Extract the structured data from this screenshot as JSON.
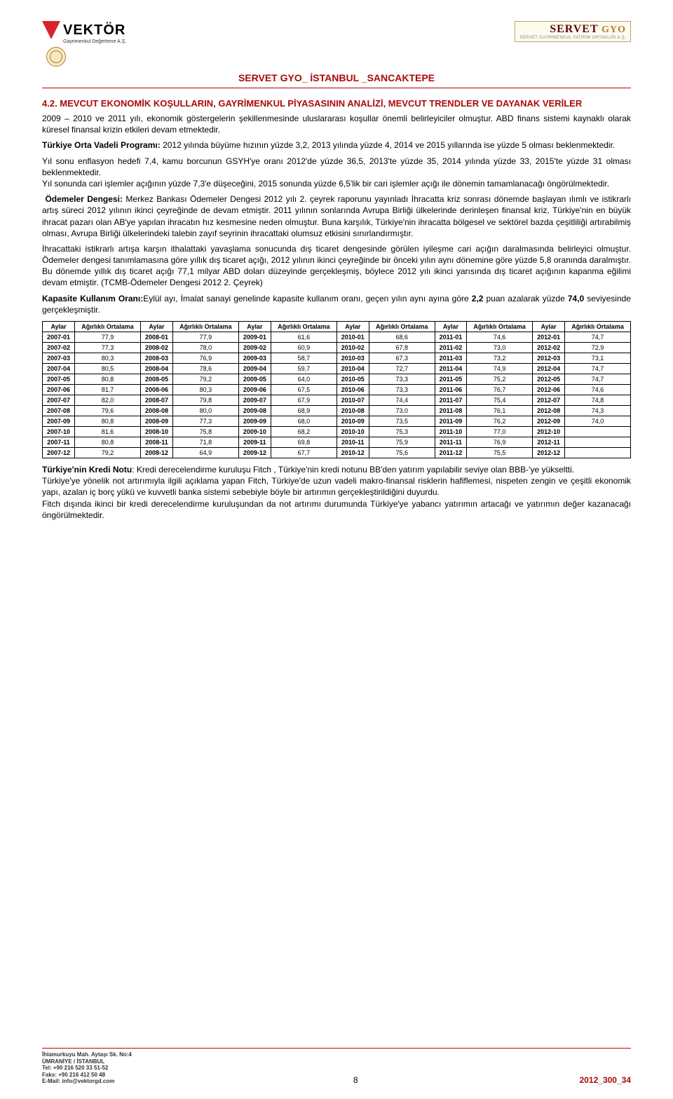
{
  "header": {
    "logo_left": {
      "brand": "VEKTÖR",
      "sub": "Gayrimenkul Değerleme A.Ş."
    },
    "logo_right": {
      "brand": "SERVET",
      "suffix": "GYO",
      "sub": "SERVET GAYRİMENKUL YATIRIM ORTAKLIĞI A.Ş."
    },
    "doc_title": "SERVET GYO_ İSTANBUL _SANCAKTEPE"
  },
  "section": {
    "heading": "4.2. MEVCUT EKONOMİK KOŞULLARIN, GAYRİMENKUL PİYASASININ ANALİZİ, MEVCUT TRENDLER VE DAYANAK VERİLER",
    "p1": "2009 – 2010 ve 2011 yılı, ekonomik göstergelerin şekillenmesinde uluslararası koşullar önemli belirleyiciler olmuştur. ABD finans sistemi kaynaklı olarak küresel finansal krizin etkileri devam etmektedir.",
    "p2_b": "Türkiye Orta Vadeli Programı:",
    "p2": " 2012 yılında büyüme hızının yüzde 3,2, 2013 yılında yüzde 4, 2014 ve 2015 yıllarında ise yüzde 5 olması beklenmektedir.",
    "p3a": "Yıl sonu enflasyon hedefi 7,4,  kamu borcunun GSYH'ye oranı 2012'de yüzde 36,5, 2013'te yüzde 35, 2014 yılında yüzde 33, 2015'te yüzde 31 olması beklenmektedir.",
    "p3b": "Yıl sonunda cari işlemler açığının yüzde 7,3'e düşeceğini,  2015 sonunda yüzde 6,5'lik bir cari işlemler açığı ile dönemin tamamlanacağı öngörülmektedir.",
    "p4_b": "Ödemeler Dengesi:",
    "p4": " Merkez Bankası Ödemeler Dengesi 2012 yılı 2. çeyrek raporunu yayınladı İhracatta kriz sonrası dönemde başlayan ılımlı ve istikrarlı artış süreci 2012 yılının ikinci çeyreğinde de devam etmiştir. 2011 yılının sonlarında Avrupa Birliği ülkelerinde derinleşen finansal kriz, Türkiye'nin en büyük ihracat pazarı olan AB'ye yapılan ihracatın hız kesmesine neden olmuştur. Buna karşılık, Türkiye'nin ihracatta bölgesel ve sektörel bazda çeşitliliği artırabilmiş olması, Avrupa Birliği ülkelerindeki talebin zayıf seyrinin ihracattaki olumsuz etkisini sınırlandırmıştır.",
    "p5": " İhracattaki istikrarlı artışa karşın ithalattaki yavaşlama sonucunda dış ticaret dengesinde görülen iyileşme cari açığın daralmasında belirleyici olmuştur. Ödemeler dengesi tanımlamasına göre yıllık dış ticaret açığı, 2012 yılının ikinci çeyreğinde bir önceki yılın aynı dönemine göre yüzde 5,8 oranında daralmıştır. Bu dönemde yıllık dış ticaret açığı 77,1 milyar ABD doları düzeyinde gerçekleşmiş, böylece 2012 yılı ikinci yarısında dış ticaret açığının kapanma eğilimi devam etmiştir. (TCMB-Ödemeler Dengesi 2012 2. Çeyrek)",
    "p6_b": "Kapasite Kullanım Oranı:",
    "p6a": "Eylül ayı, İmalat sanayi genelinde kapasite kullanım oranı, geçen yılın aynı ayına göre ",
    "p6b_b": "2,2",
    "p6c": " puan azalarak yüzde ",
    "p6d_b": "74,0",
    "p6e": " seviyesinde gerçekleşmiştir.",
    "p7_b": "Türkiye'nin Kredi Notu",
    "p7a": ": Kredi derecelendirme kuruluşu Fitch , Türkiye'nin kredi notunu BB'den yatırım yapılabilir seviye olan BBB-'ye yükseltti.",
    "p7b": "Türkiye'ye yönelik not artırımıyla ilgili açıklama yapan Fitch, Türkiye'de uzun vadeli makro-finansal risklerin hafiflemesi, nispeten zengin ve çeşitli ekonomik yapı, azalan iç borç yükü ve kuvvetli banka sistemi sebebiyle böyle bir artırımın gerçekleştirildiğini duyurdu.",
    "p7c": "Fitch dışında ikinci bir kredi derecelendirme kuruluşundan da not artırımı durumunda Türkiye'ye yabancı yatırımın artacağı ve yatırımın değer kazanacağı öngörülmektedir."
  },
  "table": {
    "col_month": "Aylar",
    "col_value": "Ağırlıklı Ortalama",
    "years": [
      "2007",
      "2008",
      "2009",
      "2010",
      "2011",
      "2012"
    ],
    "months": [
      "01",
      "02",
      "03",
      "04",
      "05",
      "06",
      "07",
      "08",
      "09",
      "10",
      "11",
      "12"
    ],
    "values": {
      "2007": [
        "77,9",
        "77,3",
        "80,3",
        "80,5",
        "80,8",
        "81,7",
        "82,0",
        "79,6",
        "80,8",
        "81,6",
        "80,8",
        "79,2"
      ],
      "2008": [
        "77,9",
        "78,0",
        "76,9",
        "78,6",
        "79,2",
        "80,3",
        "79,8",
        "80,0",
        "77,3",
        "75,8",
        "71,8",
        "64,9"
      ],
      "2009": [
        "61,6",
        "60,9",
        "58,7",
        "59,7",
        "64,0",
        "67,5",
        "67,9",
        "68,9",
        "68,0",
        "68,2",
        "69,8",
        "67,7"
      ],
      "2010": [
        "68,6",
        "67,8",
        "67,3",
        "72,7",
        "73,3",
        "73,3",
        "74,4",
        "73,0",
        "73,5",
        "75,3",
        "75,9",
        "75,6"
      ],
      "2011": [
        "74,6",
        "73,0",
        "73,2",
        "74,9",
        "75,2",
        "76,7",
        "75,4",
        "76,1",
        "76,2",
        "77,0",
        "76,9",
        "75,5"
      ],
      "2012": [
        "74,7",
        "72,9",
        "73,1",
        "74,7",
        "74,7",
        "74,6",
        "74,8",
        "74,3",
        "74,0",
        "",
        "",
        ""
      ]
    }
  },
  "footer": {
    "addr1": "İhlamurkuyu Mah. Aytaşı Sk. No:4",
    "addr2": "ÜMRANİYE / İSTANBUL",
    "tel": "Tel: +90 216 520 33 51-52",
    "fax": "Faks: +90 216 412 50 48",
    "email": "E-Mail: info@vektorgd.com",
    "page": "8",
    "code": "2012_300_34"
  }
}
